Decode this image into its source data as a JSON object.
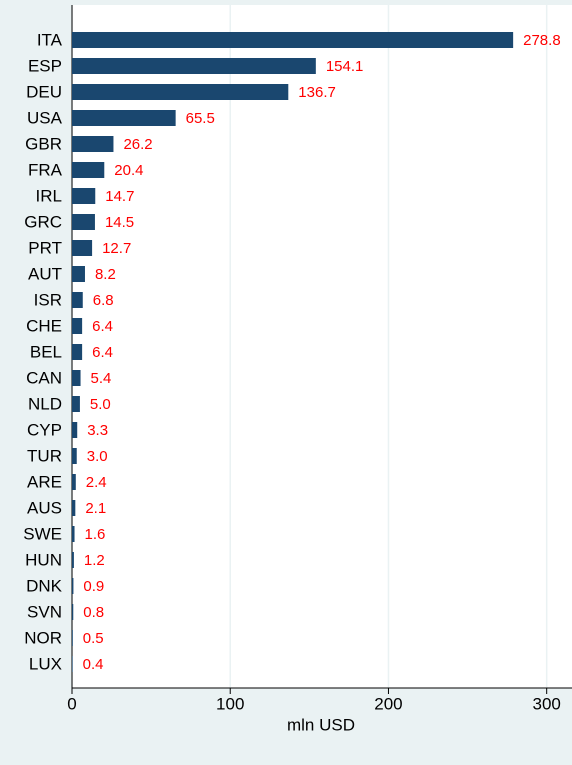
{
  "chart_data": {
    "type": "hbar",
    "categories": [
      "ITA",
      "ESP",
      "DEU",
      "USA",
      "GBR",
      "FRA",
      "IRL",
      "GRC",
      "PRT",
      "AUT",
      "ISR",
      "CHE",
      "BEL",
      "CAN",
      "NLD",
      "CYP",
      "TUR",
      "ARE",
      "AUS",
      "SWE",
      "HUN",
      "DNK",
      "SVN",
      "NOR",
      "LUX"
    ],
    "values": [
      278.8,
      154.1,
      136.7,
      65.5,
      26.2,
      20.4,
      14.7,
      14.5,
      12.7,
      8.2,
      6.8,
      6.4,
      6.4,
      5.4,
      5.0,
      3.3,
      3.0,
      2.4,
      2.1,
      1.6,
      1.2,
      0.9,
      0.8,
      0.5,
      0.4
    ],
    "value_labels": [
      "278.8",
      "154.1",
      "136.7",
      "65.5",
      "26.2",
      "20.4",
      "14.7",
      "14.5",
      "12.7",
      "8.2",
      "6.8",
      "6.4",
      "6.4",
      "5.4",
      "5.0",
      "3.3",
      "3.0",
      "2.4",
      "2.1",
      "1.6",
      "1.2",
      "0.9",
      "0.8",
      "0.5",
      "0.4"
    ],
    "color": "#1a476f",
    "label_color": "#ff0000",
    "xlabel": "mln USD",
    "xlim": [
      0,
      316
    ],
    "xticks": [
      0,
      100,
      200,
      300
    ],
    "grid": true
  }
}
